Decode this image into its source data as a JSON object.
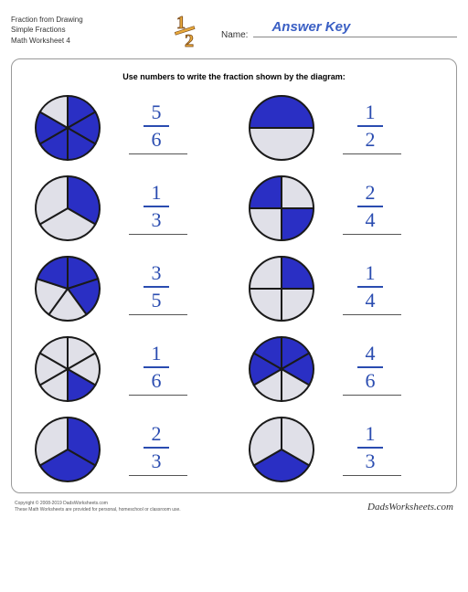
{
  "header": {
    "title_line1": "Fraction from Drawing",
    "title_line2": "Simple Fractions",
    "title_line3": "Math Worksheet 4",
    "name_label": "Name:",
    "answer_key": "Answer Key"
  },
  "logo": {
    "numerator": "1",
    "denominator": "2",
    "color": "#e8a93a",
    "outline": "#7a4a1a"
  },
  "instruction": "Use numbers to write the fraction shown by the diagram:",
  "pie_style": {
    "filled": "#2a2fc4",
    "empty": "#e0e0e8",
    "stroke": "#1a1a1a",
    "stroke_width": 2
  },
  "fraction_color": "#2a4cb0",
  "items": [
    {
      "segments": 6,
      "filled": [
        1,
        1,
        1,
        1,
        1,
        0
      ],
      "start": -90,
      "num": "5",
      "den": "6"
    },
    {
      "segments": 2,
      "filled": [
        1,
        0
      ],
      "start": 180,
      "num": "1",
      "den": "2"
    },
    {
      "segments": 3,
      "filled": [
        1,
        0,
        0
      ],
      "start": -90,
      "num": "1",
      "den": "3"
    },
    {
      "segments": 4,
      "filled": [
        0,
        1,
        0,
        1
      ],
      "start": -90,
      "num": "2",
      "den": "4"
    },
    {
      "segments": 5,
      "filled": [
        1,
        1,
        0,
        0,
        1
      ],
      "start": -90,
      "num": "3",
      "den": "5"
    },
    {
      "segments": 4,
      "filled": [
        1,
        0,
        0,
        0
      ],
      "start": -90,
      "num": "1",
      "den": "4"
    },
    {
      "segments": 6,
      "filled": [
        0,
        0,
        1,
        0,
        0,
        0
      ],
      "start": -90,
      "num": "1",
      "den": "6"
    },
    {
      "segments": 6,
      "filled": [
        1,
        1,
        0,
        0,
        1,
        1
      ],
      "start": -90,
      "num": "4",
      "den": "6"
    },
    {
      "segments": 3,
      "filled": [
        1,
        1,
        0
      ],
      "start": -90,
      "num": "2",
      "den": "3"
    },
    {
      "segments": 3,
      "filled": [
        0,
        1,
        0
      ],
      "start": -90,
      "num": "1",
      "den": "3"
    }
  ],
  "footer": {
    "copyright": "Copyright © 2008-2019 DadsWorksheets.com",
    "note": "These Math Worksheets are provided for personal, homeschool or classroom use.",
    "brand": "DadsWorksheets.com"
  }
}
